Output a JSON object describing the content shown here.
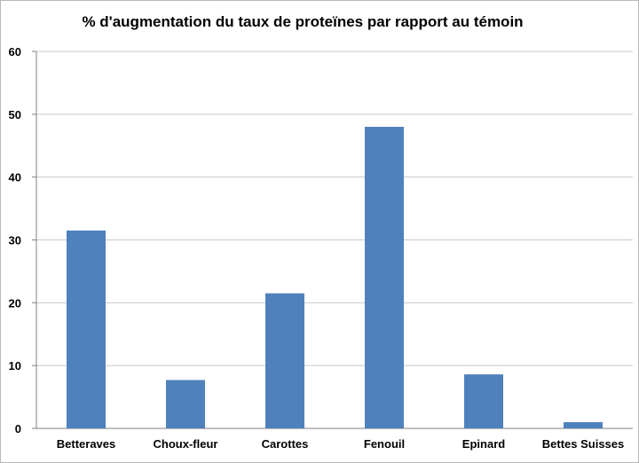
{
  "chart_data": {
    "type": "bar",
    "title": "% d'augmentation du taux de proteïnes par rapport au témoin",
    "categories": [
      "Betteraves",
      "Choux-fleur",
      "Carottes",
      "Fenouil",
      "Epinard",
      "Bettes Suisses"
    ],
    "series": [
      {
        "values": [
          31.5,
          7.7,
          21.5,
          48,
          8.6,
          1
        ]
      }
    ],
    "xlabel": "",
    "ylabel": "",
    "ylim": [
      0,
      60
    ],
    "yticks": [
      0,
      10,
      20,
      30,
      40,
      50,
      60
    ],
    "grid": "horizontal",
    "legend": "none",
    "colors": {
      "bar": "#4f81bd",
      "grid": "#c8c8c8",
      "axis": "#808080"
    }
  }
}
